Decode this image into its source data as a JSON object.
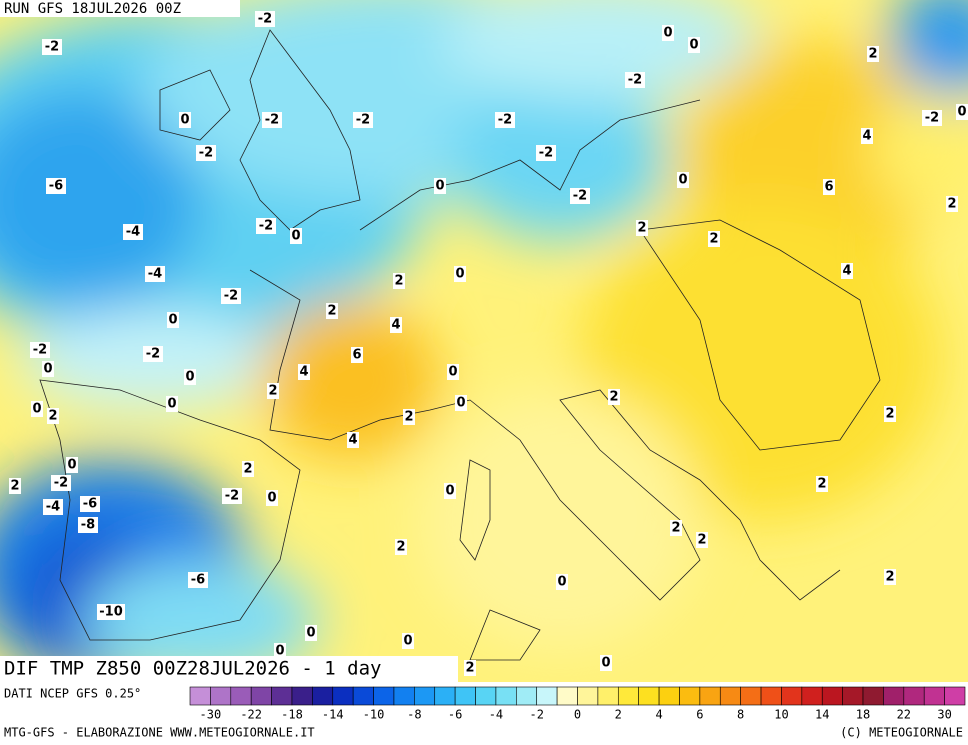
{
  "header": {
    "run": "RUN GFS 18JUL2026 00Z",
    "field": "DIF TMP Z850 00Z28JUL2026 - 1 day"
  },
  "footer": {
    "source": "DATI NCEP GFS 0.25°",
    "credit": "MTG-GFS - ELABORAZIONE WWW.METEOGIORNALE.IT",
    "copyright": "(C) METEOGIORNALE"
  },
  "colorbar": {
    "colors": [
      "#c58fd8",
      "#ae74c8",
      "#9a5cb8",
      "#7f45a6",
      "#5d2f95",
      "#3a1f8a",
      "#1a1fa0",
      "#0b2fc0",
      "#0a4ad8",
      "#0c64e8",
      "#1280f0",
      "#1c98f4",
      "#2bb0f6",
      "#3fc4f6",
      "#58d4f4",
      "#78e0f4",
      "#a0ecf6",
      "#c8f6fa",
      "#fffbc8",
      "#fff59a",
      "#fff06a",
      "#ffe93a",
      "#fde020",
      "#fcd010",
      "#fbbc10",
      "#f9a412",
      "#f78a14",
      "#f46e16",
      "#ef5018",
      "#e2341c",
      "#d0201e",
      "#bb1620",
      "#a51828",
      "#8f1a30",
      "#a0206a",
      "#b0287e",
      "#c13292",
      "#cf3ea6"
    ],
    "labels": [
      -30,
      -22,
      -18,
      -14,
      -10,
      -8,
      -6,
      -4,
      -2,
      0,
      2,
      4,
      6,
      8,
      10,
      14,
      18,
      22,
      30
    ]
  },
  "map": {
    "contour_labels": [
      -2,
      -2,
      0,
      0,
      2,
      -2,
      0,
      -2,
      -2,
      -2,
      -2,
      0,
      4,
      -2,
      -2,
      -6,
      0,
      0,
      6,
      -2,
      2,
      -2,
      0,
      -4,
      2,
      2,
      -4,
      0,
      2,
      4,
      -2,
      2,
      0,
      4,
      -2,
      -2,
      6,
      0,
      4,
      0,
      0,
      2,
      2,
      0,
      2,
      0,
      0,
      2,
      2,
      4,
      0,
      2,
      -2,
      2,
      -2,
      0,
      0,
      2,
      -4,
      -6,
      -8,
      2,
      2,
      2,
      -6,
      2,
      0,
      -10,
      0,
      0,
      0,
      0,
      2
    ]
  }
}
